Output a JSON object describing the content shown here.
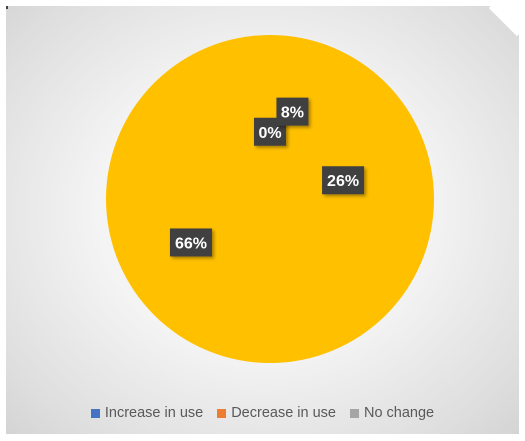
{
  "chart_data": {
    "type": "pie",
    "categories": [
      "Increase in use",
      "Decrease in use",
      "No change",
      ""
    ],
    "values": [
      0,
      8,
      26,
      66
    ],
    "data_labels": [
      "0%",
      "8%",
      "26%",
      "66%"
    ],
    "colors": [
      "#4472c4",
      "#ed7d31",
      "#a5a5a5",
      "#ffc000"
    ],
    "legend": [
      "Increase in use",
      "Decrease in use",
      "No change"
    ],
    "legend_position": "bottom"
  }
}
